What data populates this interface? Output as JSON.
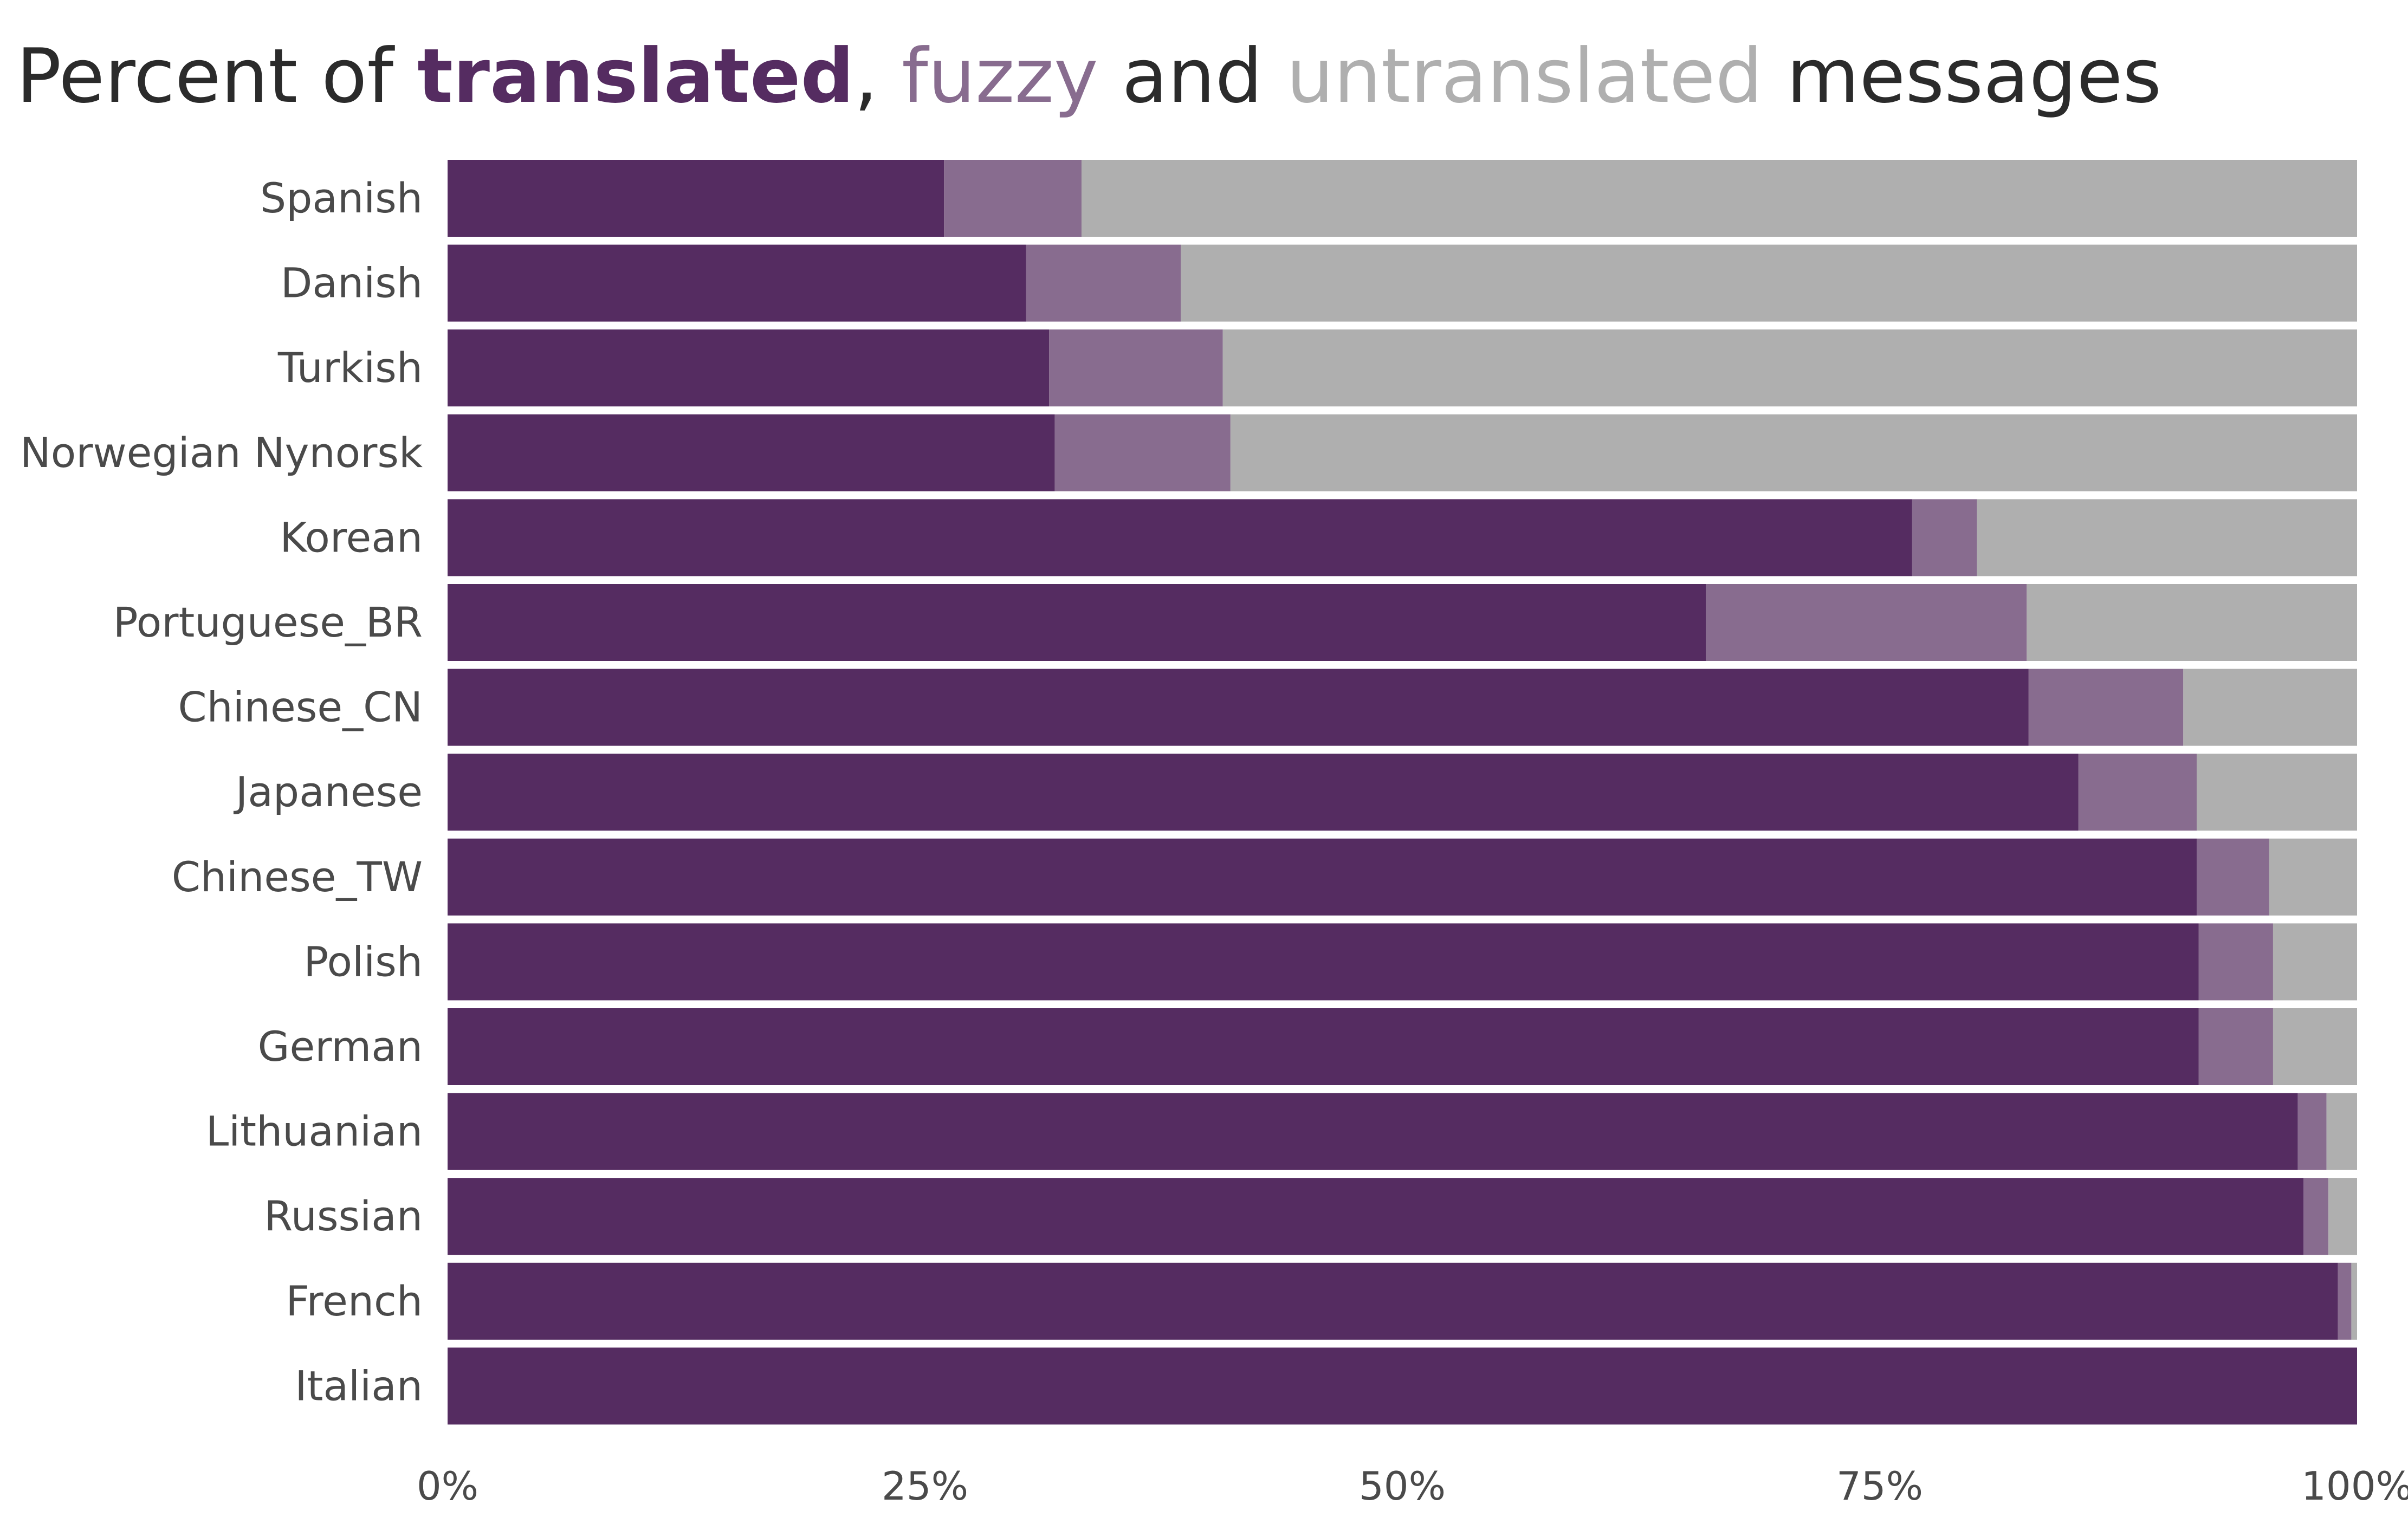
{
  "title": {
    "prefix": "Percent of ",
    "translated": "translated",
    "sep1": ", ",
    "fuzzy": "fuzzy",
    "and": " and ",
    "untranslated": "untranslated",
    "suffix": " messages"
  },
  "colors": {
    "translated": "#552c61",
    "fuzzy": "#886c8f",
    "untranslated": "#afafaf",
    "title_text": "#2b2b2b",
    "label_text": "#4a4a4a"
  },
  "chart_data": {
    "type": "bar",
    "orientation": "horizontal",
    "stacked": true,
    "categories": [
      "Spanish",
      "Danish",
      "Turkish",
      "Norwegian Nynorsk",
      "Korean",
      "Portuguese_BR",
      "Chinese_CN",
      "Japanese",
      "Chinese_TW",
      "Polish",
      "German",
      "Lithuanian",
      "Russian",
      "French",
      "Italian"
    ],
    "series": [
      {
        "name": "translated",
        "values": [
          26.0,
          30.3,
          31.5,
          31.8,
          76.7,
          65.9,
          82.8,
          85.4,
          91.6,
          91.7,
          91.7,
          96.9,
          97.2,
          99.0,
          100.0
        ]
      },
      {
        "name": "fuzzy",
        "values": [
          7.2,
          8.1,
          9.1,
          9.2,
          3.4,
          16.8,
          8.1,
          6.2,
          3.8,
          3.9,
          3.9,
          1.5,
          1.3,
          0.7,
          0.0
        ]
      },
      {
        "name": "untranslated",
        "values": [
          66.8,
          61.6,
          59.4,
          59.0,
          19.9,
          17.3,
          9.1,
          8.4,
          4.6,
          4.4,
          4.4,
          1.6,
          1.5,
          0.3,
          0.0
        ]
      }
    ],
    "xlim": [
      0,
      100
    ],
    "x_ticks": [
      0,
      25,
      50,
      75,
      100
    ],
    "x_tick_labels": [
      "0%",
      "25%",
      "50%",
      "75%",
      "100%"
    ],
    "xlabel": "",
    "ylabel": "",
    "grid": false,
    "legend": "none"
  }
}
